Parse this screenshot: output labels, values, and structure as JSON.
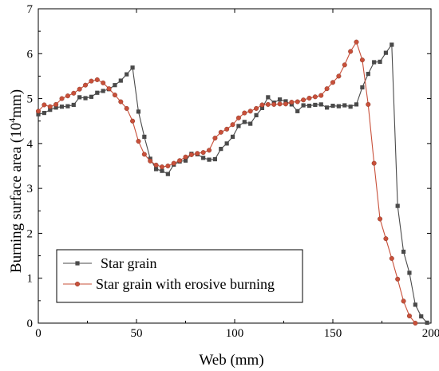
{
  "chart_data": {
    "type": "line",
    "xlabel": "Web (mm)",
    "ylabel_main": "Burning surface area (10",
    "ylabel_sup": "4",
    "ylabel_unit": "mm)",
    "xlim": [
      0,
      200
    ],
    "ylim": [
      0,
      7
    ],
    "x_ticks": [
      0,
      50,
      100,
      150,
      200
    ],
    "y_ticks": [
      0,
      1,
      2,
      3,
      4,
      5,
      6,
      7
    ],
    "grid": false,
    "legend_position": "bottom-left",
    "series": [
      {
        "name": "Star grain",
        "color": "#4a4a4a",
        "marker": "square",
        "points": [
          [
            0,
            4.65
          ],
          [
            3,
            4.68
          ],
          [
            6,
            4.75
          ],
          [
            9,
            4.8
          ],
          [
            12,
            4.82
          ],
          [
            15,
            4.83
          ],
          [
            18,
            4.86
          ],
          [
            21,
            5.03
          ],
          [
            24,
            5.01
          ],
          [
            27,
            5.04
          ],
          [
            30,
            5.13
          ],
          [
            33,
            5.17
          ],
          [
            36,
            5.21
          ],
          [
            39,
            5.3
          ],
          [
            42,
            5.4
          ],
          [
            45,
            5.54
          ],
          [
            48,
            5.69
          ],
          [
            51,
            4.71
          ],
          [
            54,
            4.15
          ],
          [
            57,
            3.66
          ],
          [
            60,
            3.43
          ],
          [
            63,
            3.39
          ],
          [
            66,
            3.32
          ],
          [
            69,
            3.53
          ],
          [
            72,
            3.6
          ],
          [
            75,
            3.62
          ],
          [
            78,
            3.77
          ],
          [
            81,
            3.76
          ],
          [
            84,
            3.68
          ],
          [
            87,
            3.64
          ],
          [
            90,
            3.65
          ],
          [
            93,
            3.88
          ],
          [
            96,
            4.0
          ],
          [
            99,
            4.15
          ],
          [
            102,
            4.39
          ],
          [
            105,
            4.48
          ],
          [
            108,
            4.44
          ],
          [
            111,
            4.63
          ],
          [
            114,
            4.79
          ],
          [
            117,
            5.03
          ],
          [
            120,
            4.91
          ],
          [
            123,
            4.98
          ],
          [
            126,
            4.94
          ],
          [
            129,
            4.87
          ],
          [
            132,
            4.72
          ],
          [
            135,
            4.85
          ],
          [
            138,
            4.84
          ],
          [
            141,
            4.86
          ],
          [
            144,
            4.87
          ],
          [
            147,
            4.8
          ],
          [
            150,
            4.84
          ],
          [
            153,
            4.83
          ],
          [
            156,
            4.85
          ],
          [
            159,
            4.82
          ],
          [
            162,
            4.87
          ],
          [
            165,
            5.25
          ],
          [
            168,
            5.55
          ],
          [
            171,
            5.81
          ],
          [
            174,
            5.82
          ],
          [
            177,
            6.02
          ],
          [
            180,
            6.2
          ],
          [
            183,
            2.61
          ],
          [
            186,
            1.59
          ],
          [
            189,
            1.12
          ],
          [
            192,
            0.41
          ],
          [
            195,
            0.15
          ],
          [
            198,
            0.01
          ]
        ]
      },
      {
        "name": "Star grain with erosive burning",
        "color": "#c8503a",
        "marker": "circle",
        "points": [
          [
            0,
            4.72
          ],
          [
            3,
            4.86
          ],
          [
            6,
            4.82
          ],
          [
            9,
            4.87
          ],
          [
            12,
            5.0
          ],
          [
            15,
            5.06
          ],
          [
            18,
            5.12
          ],
          [
            21,
            5.21
          ],
          [
            24,
            5.3
          ],
          [
            27,
            5.39
          ],
          [
            30,
            5.42
          ],
          [
            33,
            5.35
          ],
          [
            36,
            5.22
          ],
          [
            39,
            5.08
          ],
          [
            42,
            4.93
          ],
          [
            45,
            4.78
          ],
          [
            48,
            4.5
          ],
          [
            51,
            4.05
          ],
          [
            54,
            3.76
          ],
          [
            57,
            3.61
          ],
          [
            60,
            3.52
          ],
          [
            63,
            3.48
          ],
          [
            66,
            3.5
          ],
          [
            69,
            3.56
          ],
          [
            72,
            3.62
          ],
          [
            75,
            3.7
          ],
          [
            78,
            3.75
          ],
          [
            81,
            3.78
          ],
          [
            84,
            3.8
          ],
          [
            87,
            3.85
          ],
          [
            90,
            4.12
          ],
          [
            93,
            4.25
          ],
          [
            96,
            4.32
          ],
          [
            99,
            4.42
          ],
          [
            102,
            4.57
          ],
          [
            105,
            4.68
          ],
          [
            108,
            4.72
          ],
          [
            111,
            4.78
          ],
          [
            114,
            4.86
          ],
          [
            117,
            4.87
          ],
          [
            120,
            4.87
          ],
          [
            123,
            4.88
          ],
          [
            126,
            4.88
          ],
          [
            129,
            4.92
          ],
          [
            132,
            4.93
          ],
          [
            135,
            4.97
          ],
          [
            138,
            5.01
          ],
          [
            141,
            5.04
          ],
          [
            144,
            5.07
          ],
          [
            147,
            5.22
          ],
          [
            150,
            5.36
          ],
          [
            153,
            5.5
          ],
          [
            156,
            5.75
          ],
          [
            159,
            6.05
          ],
          [
            162,
            6.26
          ],
          [
            165,
            5.86
          ],
          [
            168,
            4.87
          ],
          [
            171,
            3.56
          ],
          [
            174,
            2.32
          ],
          [
            177,
            1.88
          ],
          [
            180,
            1.44
          ],
          [
            183,
            0.98
          ],
          [
            186,
            0.49
          ],
          [
            189,
            0.16
          ],
          [
            192,
            0.0
          ]
        ]
      }
    ]
  }
}
